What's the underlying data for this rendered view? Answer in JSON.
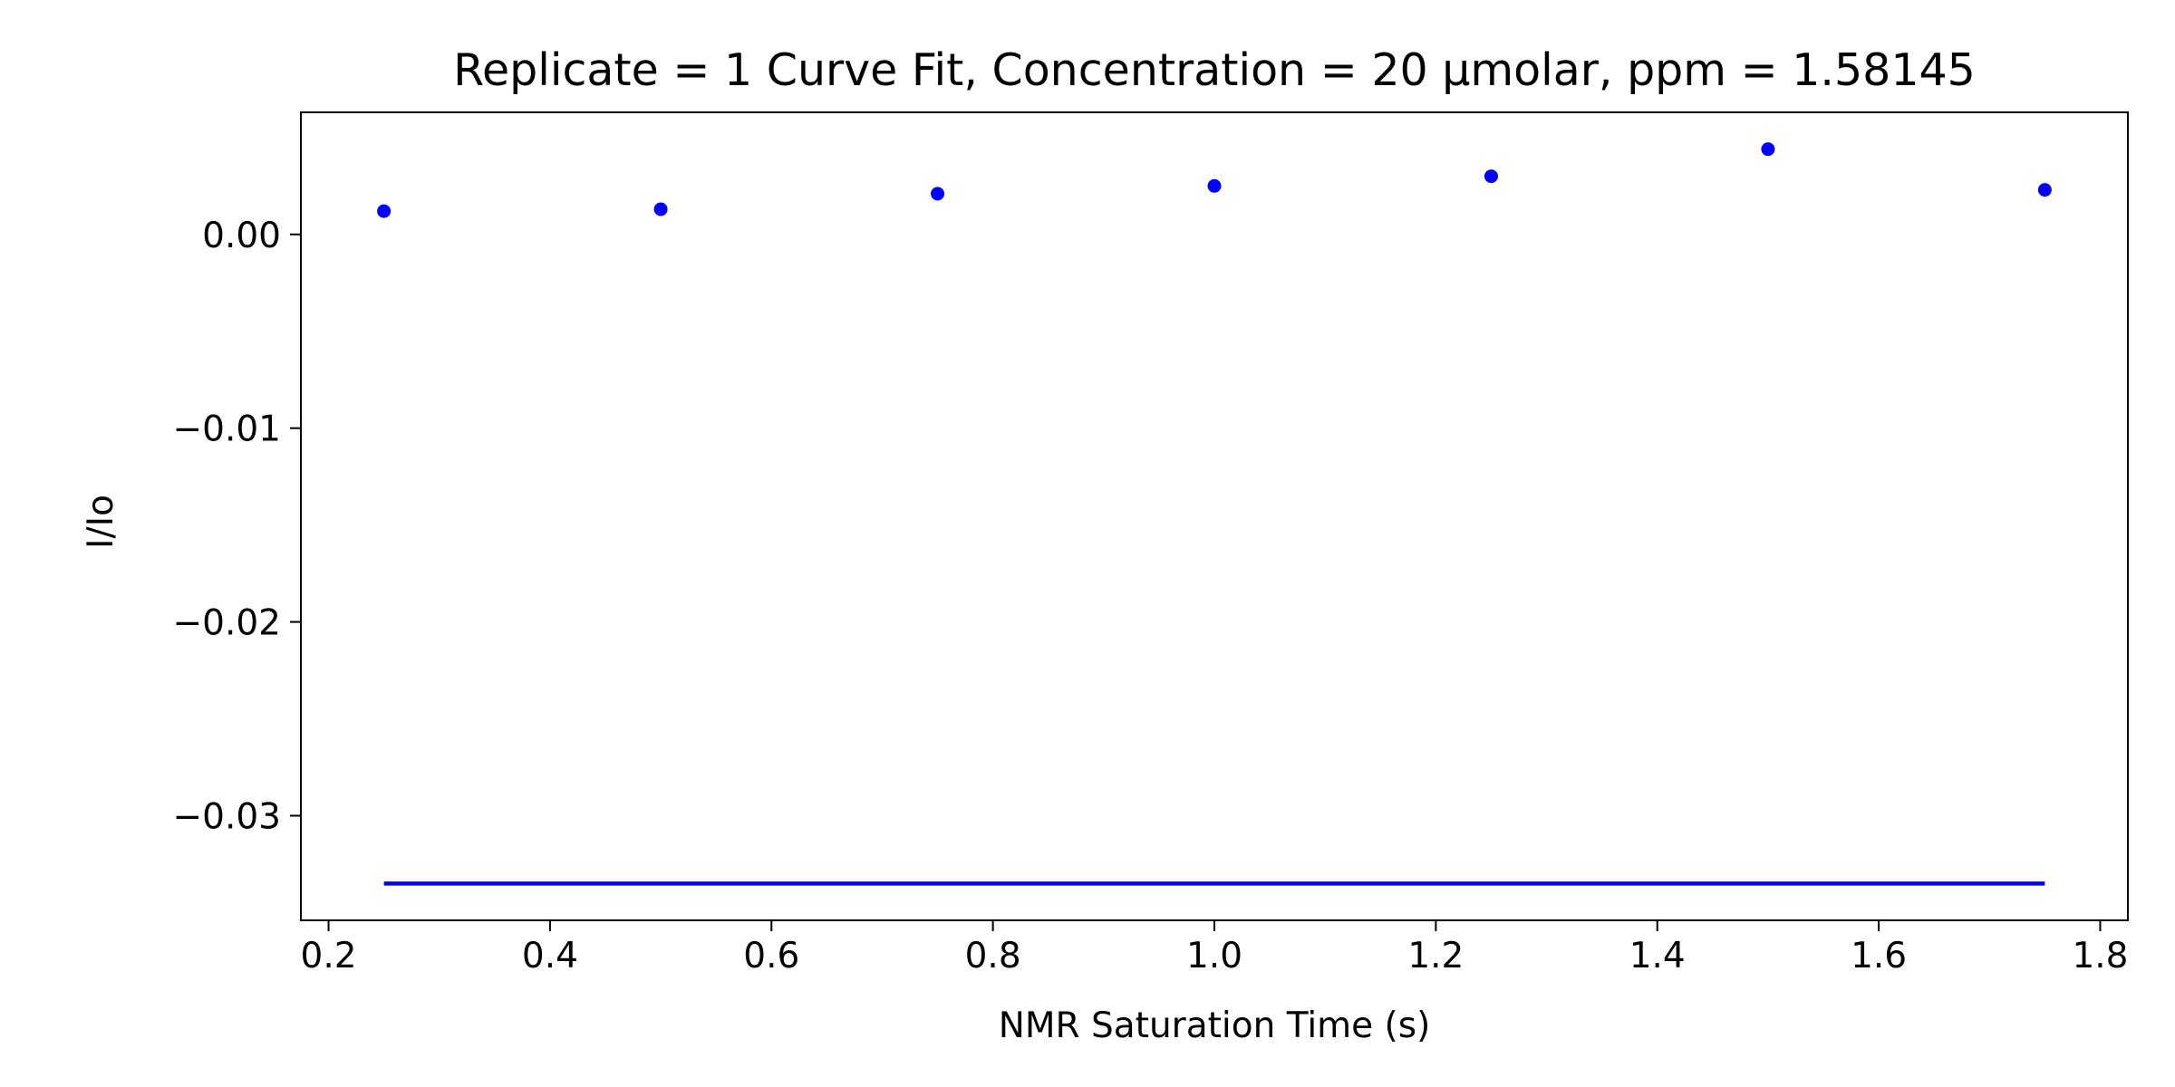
{
  "chart_data": {
    "type": "scatter",
    "title": "Replicate = 1 Curve Fit, Concentration = 20 µmolar, ppm = 1.58145",
    "xlabel": "NMR Saturation Time (s)",
    "ylabel": "I/Io",
    "xlim": [
      0.175,
      1.825
    ],
    "ylim": [
      -0.0354,
      0.0063
    ],
    "grid": false,
    "legend": "none",
    "x_ticks": [
      0.2,
      0.4,
      0.6,
      0.8,
      1.0,
      1.2,
      1.4,
      1.6,
      1.8
    ],
    "x_tick_labels": [
      "0.2",
      "0.4",
      "0.6",
      "0.8",
      "1.0",
      "1.2",
      "1.4",
      "1.6",
      "1.8"
    ],
    "y_ticks": [
      0.0,
      -0.01,
      -0.02,
      -0.03
    ],
    "y_tick_labels": [
      "0.00",
      "−0.01",
      "−0.02",
      "−0.03"
    ],
    "series": [
      {
        "name": "data",
        "kind": "scatter",
        "color": "#0000ff",
        "x": [
          0.25,
          0.5,
          0.75,
          1.0,
          1.25,
          1.5,
          1.75
        ],
        "y": [
          0.0012,
          0.0013,
          0.0021,
          0.0025,
          0.003,
          0.0044,
          0.0023
        ]
      },
      {
        "name": "fit",
        "kind": "line",
        "color": "#0000ff",
        "x": [
          0.25,
          1.75
        ],
        "y": [
          -0.0335,
          -0.0335
        ]
      }
    ]
  }
}
